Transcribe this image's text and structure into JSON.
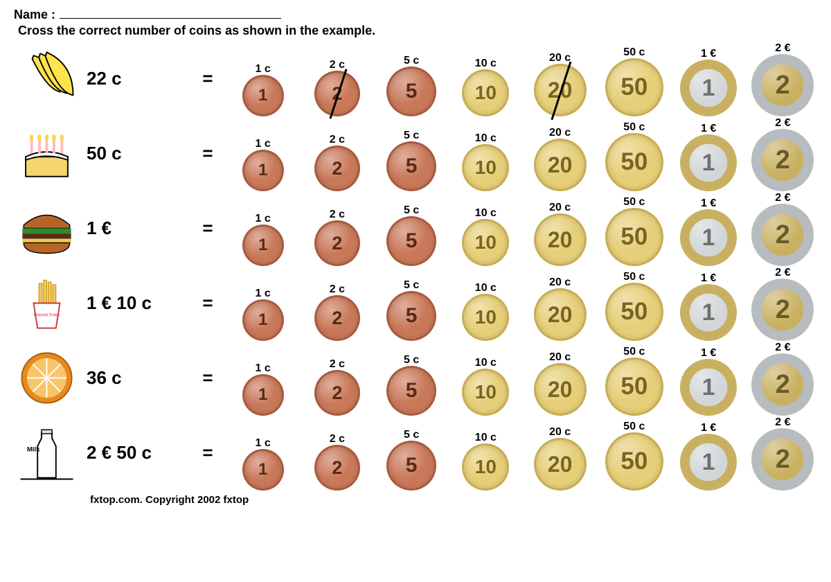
{
  "header": {
    "name_label": "Name :",
    "instruction": "Cross the correct number of coins as shown in the example."
  },
  "coins": [
    {
      "id": "1c",
      "label": "1 c",
      "size": 54,
      "face": "1",
      "bg": "#c9795a",
      "rim": "#a85a3e",
      "text_color": "#5a2a14",
      "ring": null
    },
    {
      "id": "2c",
      "label": "2 c",
      "size": 60,
      "face": "2",
      "bg": "#c9795a",
      "rim": "#a85a3e",
      "text_color": "#5a2a14",
      "ring": null
    },
    {
      "id": "5c",
      "label": "5 c",
      "size": 66,
      "face": "5",
      "bg": "#c9795a",
      "rim": "#a85a3e",
      "text_color": "#5a2a14",
      "ring": null
    },
    {
      "id": "10c",
      "label": "10 c",
      "size": 62,
      "face": "10",
      "bg": "#e6cf79",
      "rim": "#c8ac53",
      "text_color": "#7a6520",
      "ring": null
    },
    {
      "id": "20c",
      "label": "20 c",
      "size": 70,
      "face": "20",
      "bg": "#e6cf79",
      "rim": "#c8ac53",
      "text_color": "#7a6520",
      "ring": null
    },
    {
      "id": "50c",
      "label": "50 c",
      "size": 78,
      "face": "50",
      "bg": "#e6cf79",
      "rim": "#c8ac53",
      "text_color": "#7a6520",
      "ring": null
    },
    {
      "id": "1e",
      "label": "1 €",
      "size": 76,
      "face": "1",
      "bg": "#d2d6d8",
      "rim": "#c8b060",
      "text_color": "#6f6f6f",
      "ring": "#c8b060"
    },
    {
      "id": "2e",
      "label": "2 €",
      "size": 84,
      "face": "2",
      "bg": "#c8b060",
      "rim": "#b7bcc0",
      "text_color": "#6a5a28",
      "ring": "#b7bcc0"
    }
  ],
  "rows": [
    {
      "item": "bananas",
      "icon": "bananas-icon",
      "price": "22 c",
      "crossed": [
        "2c",
        "20c"
      ]
    },
    {
      "item": "cake",
      "icon": "cake-icon",
      "price": "50 c",
      "crossed": []
    },
    {
      "item": "hamburger",
      "icon": "burger-icon",
      "price": "1 €",
      "crossed": []
    },
    {
      "item": "fries",
      "icon": "fries-icon",
      "price": "1 € 10 c",
      "crossed": []
    },
    {
      "item": "orange",
      "icon": "orange-icon",
      "price": "36 c",
      "crossed": []
    },
    {
      "item": "milk",
      "icon": "milk-icon",
      "price": "2 € 50 c",
      "crossed": []
    }
  ],
  "equals": "=",
  "footer": "fxtop.com. Copyright 2002 fxtop"
}
